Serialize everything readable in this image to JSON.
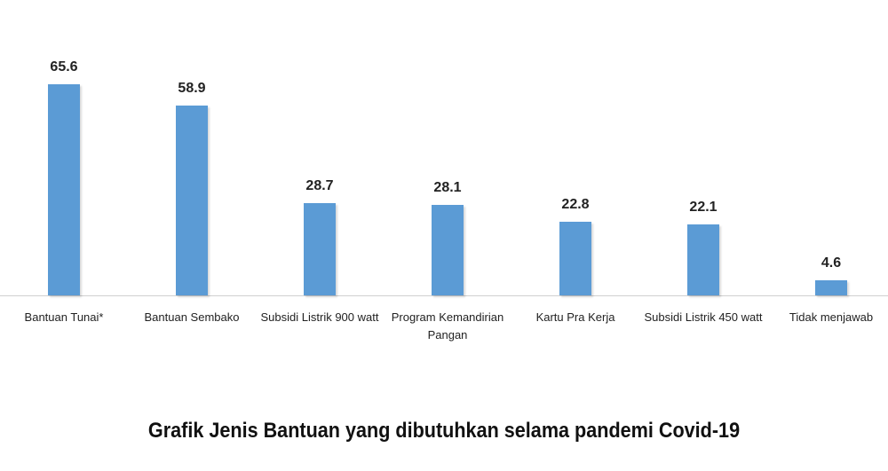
{
  "chart_data": {
    "type": "bar",
    "title": "Grafik Jenis Bantuan yang dibutuhkan selama pandemi Covid-19",
    "categories": [
      "Bantuan Tunai*",
      "Bantuan Sembako",
      "Subsidi Listrik 900 watt",
      "Program Kemandirian Pangan",
      "Kartu Pra Kerja",
      "Subsidi Listrik 450 watt",
      "Tidak menjawab"
    ],
    "values": [
      65.6,
      58.9,
      28.7,
      28.1,
      22.8,
      22.1,
      4.6
    ],
    "color": "#5b9bd5"
  }
}
